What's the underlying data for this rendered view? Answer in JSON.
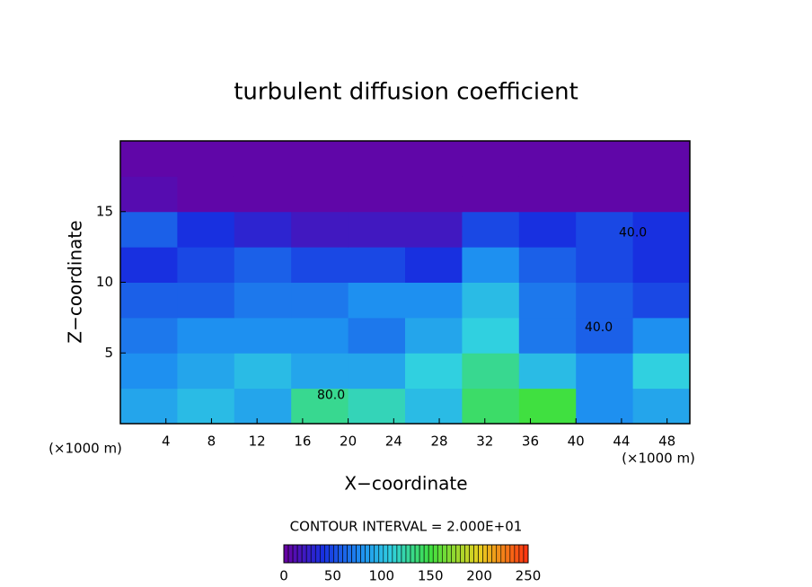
{
  "chart_data": {
    "type": "heatmap",
    "title": "turbulent diffusion coefficient",
    "x_label": "X−coordinate",
    "y_label": "Z−coordinate",
    "x_unit_label": "(×1000 m)",
    "x_unit_label_right": "(×1000 m)",
    "x_edges": [
      0,
      5,
      10,
      15,
      20,
      25,
      30,
      35,
      40,
      45,
      50
    ],
    "y_edges": [
      0,
      2.5,
      5,
      7.5,
      10,
      12.5,
      15,
      17.5,
      20
    ],
    "values": [
      [
        90,
        100,
        90,
        130,
        120,
        100,
        140,
        150,
        80,
        90
      ],
      [
        80,
        90,
        100,
        90,
        90,
        110,
        130,
        100,
        80,
        110
      ],
      [
        70,
        80,
        80,
        80,
        70,
        90,
        110,
        70,
        60,
        80
      ],
      [
        60,
        60,
        70,
        70,
        80,
        80,
        100,
        70,
        60,
        50
      ],
      [
        40,
        50,
        60,
        50,
        50,
        40,
        80,
        60,
        50,
        40
      ],
      [
        60,
        40,
        30,
        20,
        20,
        20,
        50,
        40,
        50,
        40
      ],
      [
        10,
        5,
        5,
        5,
        5,
        5,
        5,
        5,
        5,
        5
      ],
      [
        5,
        5,
        5,
        5,
        5,
        5,
        5,
        5,
        5,
        5
      ]
    ],
    "xlim": [
      0,
      50
    ],
    "ylim": [
      0,
      20
    ],
    "xticks": [
      4,
      8,
      12,
      16,
      20,
      24,
      28,
      32,
      36,
      40,
      44,
      48
    ],
    "yticks": [
      5,
      10,
      15
    ],
    "annotations": [
      {
        "text": "40.0",
        "x": 45,
        "y": 13.5
      },
      {
        "text": "40.0",
        "x": 42,
        "y": 6.8
      },
      {
        "text": "80.0",
        "x": 18.5,
        "y": 2
      }
    ],
    "colorbar": {
      "title": "CONTOUR INTERVAL = 2.000E+01",
      "clim": [
        0,
        250
      ],
      "ticks": [
        0,
        50,
        100,
        150,
        200,
        250
      ]
    },
    "colormap": [
      [
        0,
        "#6a00a0"
      ],
      [
        40,
        "#1830e0"
      ],
      [
        80,
        "#1e90f0"
      ],
      [
        110,
        "#30d0e0"
      ],
      [
        150,
        "#40e040"
      ],
      [
        200,
        "#e8d020"
      ],
      [
        250,
        "#ff3010"
      ]
    ]
  }
}
